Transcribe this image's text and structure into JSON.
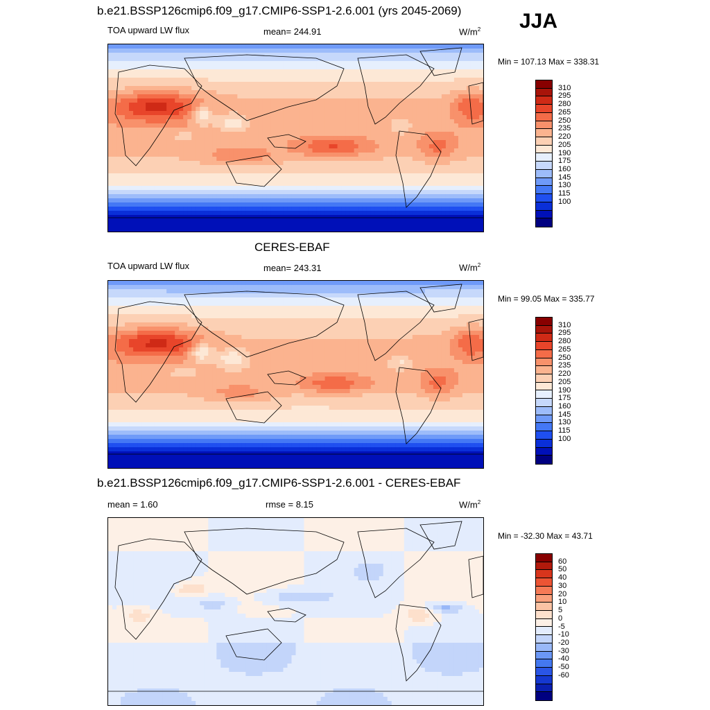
{
  "figure": {
    "season": "JJA",
    "main_title": "b.e21.BSSP126cmip6.f09_g17.CMIP6-SSP1-2.6.001 (yrs 2045-2069)",
    "obs_title": "CERES-EBAF",
    "diff_title": "b.e21.BSSP126cmip6.f09_g17.CMIP6-SSP1-2.6.001 - CERES-EBAF"
  },
  "colors": {
    "abs_palette": [
      "#000080",
      "#0010b8",
      "#0a2fd8",
      "#1f4ff0",
      "#4478f5",
      "#6f9af8",
      "#9dbcfa",
      "#c6d8fb",
      "#e6effd",
      "#fde8d6",
      "#fcd0b4",
      "#fbb38f",
      "#f8916b",
      "#f46c48",
      "#e8452a",
      "#cf2a16",
      "#a8140a",
      "#880000"
    ],
    "diff_palette": [
      "#000080",
      "#0a1fb0",
      "#1538d0",
      "#2a55e6",
      "#4478f0",
      "#6b97f5",
      "#99b8f8",
      "#c3d5fa",
      "#e3ecfd",
      "#fdf0e6",
      "#fde0cc",
      "#fbc3a4",
      "#f9a07c",
      "#f57a56",
      "#ec5434",
      "#d8351c",
      "#b21a0c",
      "#880000"
    ],
    "coastline": "#000000"
  },
  "chart_data": [
    {
      "type": "heatmap",
      "title": "b.e21.BSSP126cmip6.f09_g17.CMIP6-SSP1-2.6.001 (yrs 2045-2069)",
      "left_label": "TOA upward LW flux",
      "center_label": "mean= 244.91",
      "units": "W/m",
      "units_sup": "2",
      "min": 107.13,
      "max": 338.31,
      "minmax_label": "Min = 107.13 Max = 338.31",
      "levels": [
        100,
        115,
        130,
        145,
        160,
        175,
        190,
        205,
        220,
        235,
        250,
        265,
        280,
        295,
        310
      ],
      "tick_labels": [
        "310",
        "295",
        "280",
        "265",
        "250",
        "235",
        "220",
        "205",
        "190",
        "175",
        "160",
        "145",
        "130",
        "115",
        "100"
      ]
    },
    {
      "type": "heatmap",
      "title": "CERES-EBAF",
      "left_label": "TOA upward LW flux",
      "center_label": "mean= 243.31",
      "units": "W/m",
      "units_sup": "2",
      "min": 99.05,
      "max": 335.77,
      "minmax_label": "Min =  99.05 Max = 335.77",
      "levels": [
        100,
        115,
        130,
        145,
        160,
        175,
        190,
        205,
        220,
        235,
        250,
        265,
        280,
        295,
        310
      ],
      "tick_labels": [
        "310",
        "295",
        "280",
        "265",
        "250",
        "235",
        "220",
        "205",
        "190",
        "175",
        "160",
        "145",
        "130",
        "115",
        "100"
      ]
    },
    {
      "type": "heatmap",
      "title": "b.e21.BSSP126cmip6.f09_g17.CMIP6-SSP1-2.6.001 - CERES-EBAF",
      "left_label": "mean =   1.60",
      "center_label": "rmse =   8.15",
      "units": "W/m",
      "units_sup": "2",
      "min": -32.3,
      "max": 43.71,
      "minmax_label": "Min = -32.30 Max =  43.71",
      "levels": [
        -60,
        -50,
        -40,
        -30,
        -20,
        -10,
        -5,
        0,
        5,
        10,
        20,
        30,
        40,
        50,
        60
      ],
      "tick_labels": [
        "60",
        "50",
        "40",
        "30",
        "20",
        "10",
        "5",
        "0",
        "-5",
        "-10",
        "-20",
        "-30",
        "-40",
        "-50",
        "-60"
      ]
    }
  ]
}
